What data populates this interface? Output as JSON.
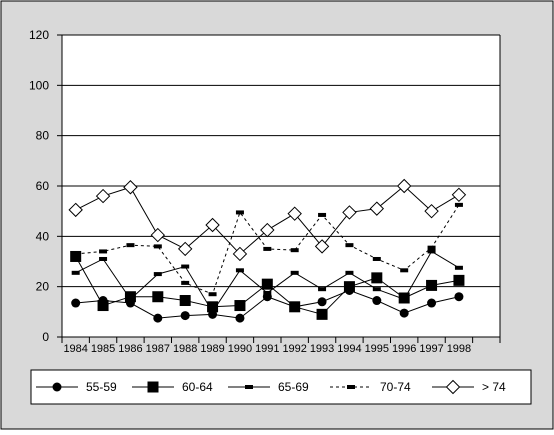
{
  "chart_data": {
    "type": "line",
    "title": "",
    "xlabel": "",
    "ylabel": "",
    "ylim": [
      0,
      120
    ],
    "yticks": [
      0,
      20,
      40,
      60,
      80,
      100,
      120
    ],
    "grid": "horizontal",
    "legend_position": "bottom",
    "x": [
      "1984",
      "1985",
      "1986",
      "1987",
      "1988",
      "1989",
      "1990",
      "1991",
      "1992",
      "1993",
      "1994",
      "1995",
      "1996",
      "1997",
      "1998"
    ],
    "series": [
      {
        "name": "55-59",
        "marker": "circle",
        "line": "solid",
        "values": [
          13.5,
          14.5,
          13.5,
          7.5,
          8.5,
          9,
          7.5,
          16,
          12,
          14,
          18.5,
          14.5,
          9.5,
          13.5,
          16
        ]
      },
      {
        "name": "60-64",
        "marker": "square",
        "line": "solid",
        "values": [
          32,
          12.5,
          16,
          16,
          14.5,
          12,
          12.5,
          21,
          12,
          9,
          20,
          23.5,
          15.5,
          20.5,
          22.5
        ]
      },
      {
        "name": "65-69",
        "marker": "dash",
        "line": "solid",
        "values": [
          25.5,
          31,
          15,
          25,
          28,
          10,
          26.5,
          17.5,
          25.5,
          19,
          25.5,
          19,
          15,
          34,
          27.5
        ]
      },
      {
        "name": "70-74",
        "marker": "dash",
        "line": "dashed",
        "values": [
          33,
          34,
          36.5,
          36,
          21.5,
          17,
          49.5,
          35,
          34.5,
          48.5,
          36.5,
          31,
          26.5,
          35.5,
          52.5
        ]
      },
      {
        "name": "> 74",
        "marker": "diamond",
        "line": "solid",
        "values": [
          50.5,
          56,
          59.5,
          40.5,
          35,
          44.5,
          33,
          42.5,
          49,
          36,
          49.5,
          51,
          60,
          50,
          56.5
        ]
      }
    ]
  }
}
